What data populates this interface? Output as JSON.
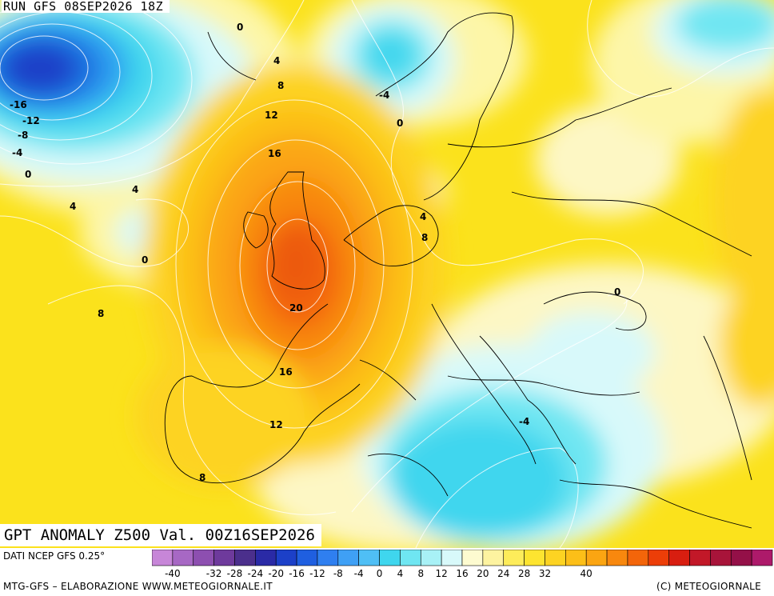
{
  "header": {
    "run_label": "RUN GFS 08SEP2026 18Z"
  },
  "map": {
    "title": "GPT ANOMALY Z500 Val. 00Z16SEP2026",
    "contour_labels": [
      "0",
      "4",
      "8",
      "12",
      "16",
      "-16",
      "-12",
      "-8",
      "-4",
      "0",
      "4",
      "4",
      "0",
      "8",
      "-4",
      "0",
      "4",
      "8",
      "20",
      "16",
      "12",
      "8",
      "0",
      "-4"
    ]
  },
  "legend": {
    "source": "DATI NCEP GFS 0.25°",
    "credit": "MTG-GFS – ELABORAZIONE WWW.METEOGIORNALE.IT",
    "copyright": "(C) METEOGIORNALE",
    "tick_labels": [
      "-40",
      "-32",
      "-28",
      "-24",
      "-20",
      "-16",
      "-12",
      "-8",
      "-4",
      "0",
      "4",
      "8",
      "12",
      "16",
      "20",
      "24",
      "28",
      "32",
      "40"
    ],
    "colors": [
      "#c786d8",
      "#a768c4",
      "#8d4fb0",
      "#6e3a9c",
      "#4b2f8c",
      "#2a2aa6",
      "#1c40c8",
      "#1f5fe0",
      "#2f7ff0",
      "#3fa0f5",
      "#4fbff5",
      "#3fd6ee",
      "#6fe6f2",
      "#a8f1f6",
      "#d8f9fa",
      "#fdfbd0",
      "#fdf3a0",
      "#fdec5a",
      "#fde430",
      "#fdd322",
      "#fcbf18",
      "#fba512",
      "#f8880e",
      "#f3650a",
      "#ec3e08",
      "#d81e10",
      "#c21828",
      "#a8143a",
      "#941048",
      "#ad1a6a"
    ]
  }
}
